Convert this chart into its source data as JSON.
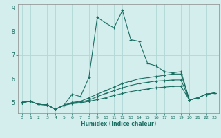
{
  "title": "",
  "xlabel": "Humidex (Indice chaleur)",
  "bg_color": "#d4eeed",
  "grid_color": "#b0d8d5",
  "line_color": "#1a6e62",
  "xlim": [
    -0.5,
    23.5
  ],
  "ylim": [
    4.55,
    9.15
  ],
  "yticks": [
    5,
    6,
    7,
    8,
    9
  ],
  "xticks": [
    0,
    1,
    2,
    3,
    4,
    5,
    6,
    7,
    8,
    9,
    10,
    11,
    12,
    13,
    14,
    15,
    16,
    17,
    18,
    19,
    20,
    21,
    22,
    23
  ],
  "series": [
    [
      0,
      5.0,
      1,
      5.05,
      2,
      4.92,
      3,
      4.9,
      4,
      4.72,
      5,
      4.88,
      6,
      5.35,
      7,
      5.25,
      8,
      6.05,
      9,
      8.6,
      10,
      8.35,
      11,
      8.15,
      12,
      8.88,
      13,
      7.65,
      14,
      7.58,
      15,
      6.65,
      16,
      6.55,
      17,
      6.3,
      18,
      6.25,
      19,
      6.3,
      20,
      5.1,
      21,
      5.2,
      22,
      5.35,
      23,
      5.4
    ],
    [
      0,
      5.0,
      1,
      5.05,
      2,
      4.92,
      3,
      4.9,
      4,
      4.72,
      5,
      4.88,
      6,
      5.0,
      7,
      5.05,
      8,
      5.2,
      9,
      5.35,
      10,
      5.5,
      11,
      5.65,
      12,
      5.8,
      13,
      5.9,
      14,
      6.0,
      15,
      6.05,
      16,
      6.1,
      17,
      6.15,
      18,
      6.2,
      19,
      6.2,
      20,
      5.1,
      21,
      5.2,
      22,
      5.35,
      23,
      5.4
    ],
    [
      0,
      5.0,
      1,
      5.05,
      2,
      4.92,
      3,
      4.9,
      4,
      4.72,
      5,
      4.88,
      6,
      4.98,
      7,
      5.02,
      8,
      5.1,
      9,
      5.25,
      10,
      5.38,
      11,
      5.5,
      12,
      5.62,
      13,
      5.72,
      14,
      5.8,
      15,
      5.85,
      16,
      5.9,
      17,
      5.92,
      18,
      5.95,
      19,
      5.95,
      20,
      5.1,
      21,
      5.2,
      22,
      5.35,
      23,
      5.4
    ],
    [
      0,
      5.0,
      1,
      5.05,
      2,
      4.92,
      3,
      4.9,
      4,
      4.72,
      5,
      4.88,
      6,
      4.95,
      7,
      4.98,
      8,
      5.05,
      9,
      5.12,
      10,
      5.2,
      11,
      5.3,
      12,
      5.38,
      13,
      5.46,
      14,
      5.52,
      15,
      5.57,
      16,
      5.62,
      17,
      5.65,
      18,
      5.68,
      19,
      5.68,
      20,
      5.1,
      21,
      5.2,
      22,
      5.35,
      23,
      5.4
    ]
  ]
}
